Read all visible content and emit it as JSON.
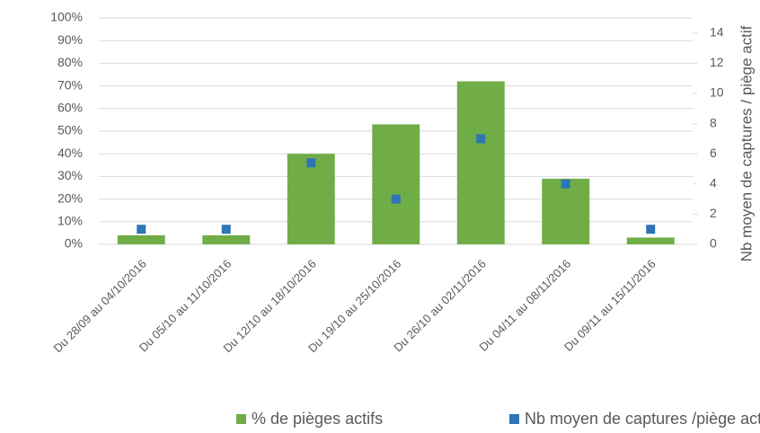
{
  "chart_data": {
    "type": "bar",
    "categories": [
      "Du 28/09 au 04/10/2016",
      "Du 05/10 au 11/10/2016",
      "Du 12/10 au 18/10/2016",
      "Du 19/10 au 25/10/2016",
      "Du 26/10 au 02/11/2016",
      "Du 04/11 au 08/11/2016",
      "Du 09/11 au 15/11/2016"
    ],
    "series": [
      {
        "name": "% de pièges actifs",
        "type": "bar",
        "color": "#70ad47",
        "values": [
          4,
          4,
          40,
          53,
          72,
          29,
          3
        ]
      },
      {
        "name": "Nb moyen de captures /piège actif",
        "type": "scatter",
        "axis": "y2",
        "color": "#2e75b6",
        "values": [
          1,
          1,
          5.4,
          3,
          7,
          4,
          1
        ]
      }
    ],
    "ylim": [
      0,
      100
    ],
    "yticks": [
      {
        "value": 0,
        "label": "0%"
      },
      {
        "value": 10,
        "label": "10%"
      },
      {
        "value": 20,
        "label": "20%"
      },
      {
        "value": 30,
        "label": "30%"
      },
      {
        "value": 40,
        "label": "40%"
      },
      {
        "value": 50,
        "label": "50%"
      },
      {
        "value": 60,
        "label": "60%"
      },
      {
        "value": 70,
        "label": "70%"
      },
      {
        "value": 80,
        "label": "80%"
      },
      {
        "value": 90,
        "label": "90%"
      },
      {
        "value": 100,
        "label": "100%"
      }
    ],
    "y2lim": [
      0,
      15
    ],
    "y2ticks": [
      0,
      2,
      4,
      6,
      8,
      10,
      12,
      14
    ],
    "y2label": "Nb moyen de captures / piège actif",
    "grid": true,
    "legend": "bottom"
  }
}
